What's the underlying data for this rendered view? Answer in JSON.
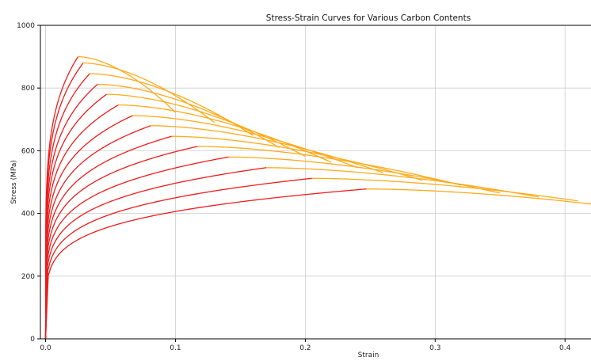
{
  "chart_data": {
    "type": "line",
    "title": "Stress-Strain Curves for Various Carbon Contents",
    "xlabel": "Strain",
    "ylabel": "Stress (MPa)",
    "xlim": [
      -0.004,
      0.42
    ],
    "ylim": [
      0,
      1000
    ],
    "x_ticks": [
      0.0,
      0.1,
      0.2,
      0.3,
      0.4
    ],
    "x_tick_labels": [
      "0.0",
      "0.1",
      "0.2",
      "0.3",
      "0.4"
    ],
    "y_ticks": [
      0,
      200,
      400,
      600,
      800,
      1000
    ],
    "y_tick_labels": [
      "0",
      "200",
      "400",
      "600",
      "800",
      "1000"
    ],
    "grid": true,
    "legend": "none",
    "colors": {
      "hardening": "#ee1c1c",
      "necking": "#ffaa1a",
      "grid": "#cccccc",
      "axis": "#000000"
    },
    "curve_segments": [
      "hardening (red, up to ultimate strength)",
      "necking (orange, after ultimate strength)"
    ],
    "series": [
      {
        "ultimate_strain": 0.025,
        "ultimate_stress": 900,
        "fracture_strain": 0.1,
        "fracture_stress": 722
      },
      {
        "ultimate_strain": 0.029,
        "ultimate_stress": 880,
        "fracture_strain": 0.13,
        "fracture_stress": 690
      },
      {
        "ultimate_strain": 0.034,
        "ultimate_stress": 846,
        "fracture_strain": 0.16,
        "fracture_stress": 648
      },
      {
        "ultimate_strain": 0.04,
        "ultimate_stress": 812,
        "fracture_strain": 0.18,
        "fracture_stress": 610
      },
      {
        "ultimate_strain": 0.047,
        "ultimate_stress": 780,
        "fracture_strain": 0.2,
        "fracture_stress": 582
      },
      {
        "ultimate_strain": 0.056,
        "ultimate_stress": 746,
        "fracture_strain": 0.22,
        "fracture_stress": 563
      },
      {
        "ultimate_strain": 0.067,
        "ultimate_stress": 712,
        "fracture_strain": 0.24,
        "fracture_stress": 546
      },
      {
        "ultimate_strain": 0.081,
        "ultimate_stress": 680,
        "fracture_strain": 0.26,
        "fracture_stress": 530
      },
      {
        "ultimate_strain": 0.097,
        "ultimate_stress": 646,
        "fracture_strain": 0.29,
        "fracture_stress": 506
      },
      {
        "ultimate_strain": 0.117,
        "ultimate_stress": 614,
        "fracture_strain": 0.32,
        "fracture_stress": 490
      },
      {
        "ultimate_strain": 0.141,
        "ultimate_stress": 580,
        "fracture_strain": 0.35,
        "fracture_stress": 465
      },
      {
        "ultimate_strain": 0.17,
        "ultimate_stress": 546,
        "fracture_strain": 0.38,
        "fracture_stress": 452
      },
      {
        "ultimate_strain": 0.205,
        "ultimate_stress": 512,
        "fracture_strain": 0.41,
        "fracture_stress": 440
      },
      {
        "ultimate_strain": 0.247,
        "ultimate_stress": 478,
        "fracture_strain": 0.42,
        "fracture_stress": 430
      }
    ]
  }
}
